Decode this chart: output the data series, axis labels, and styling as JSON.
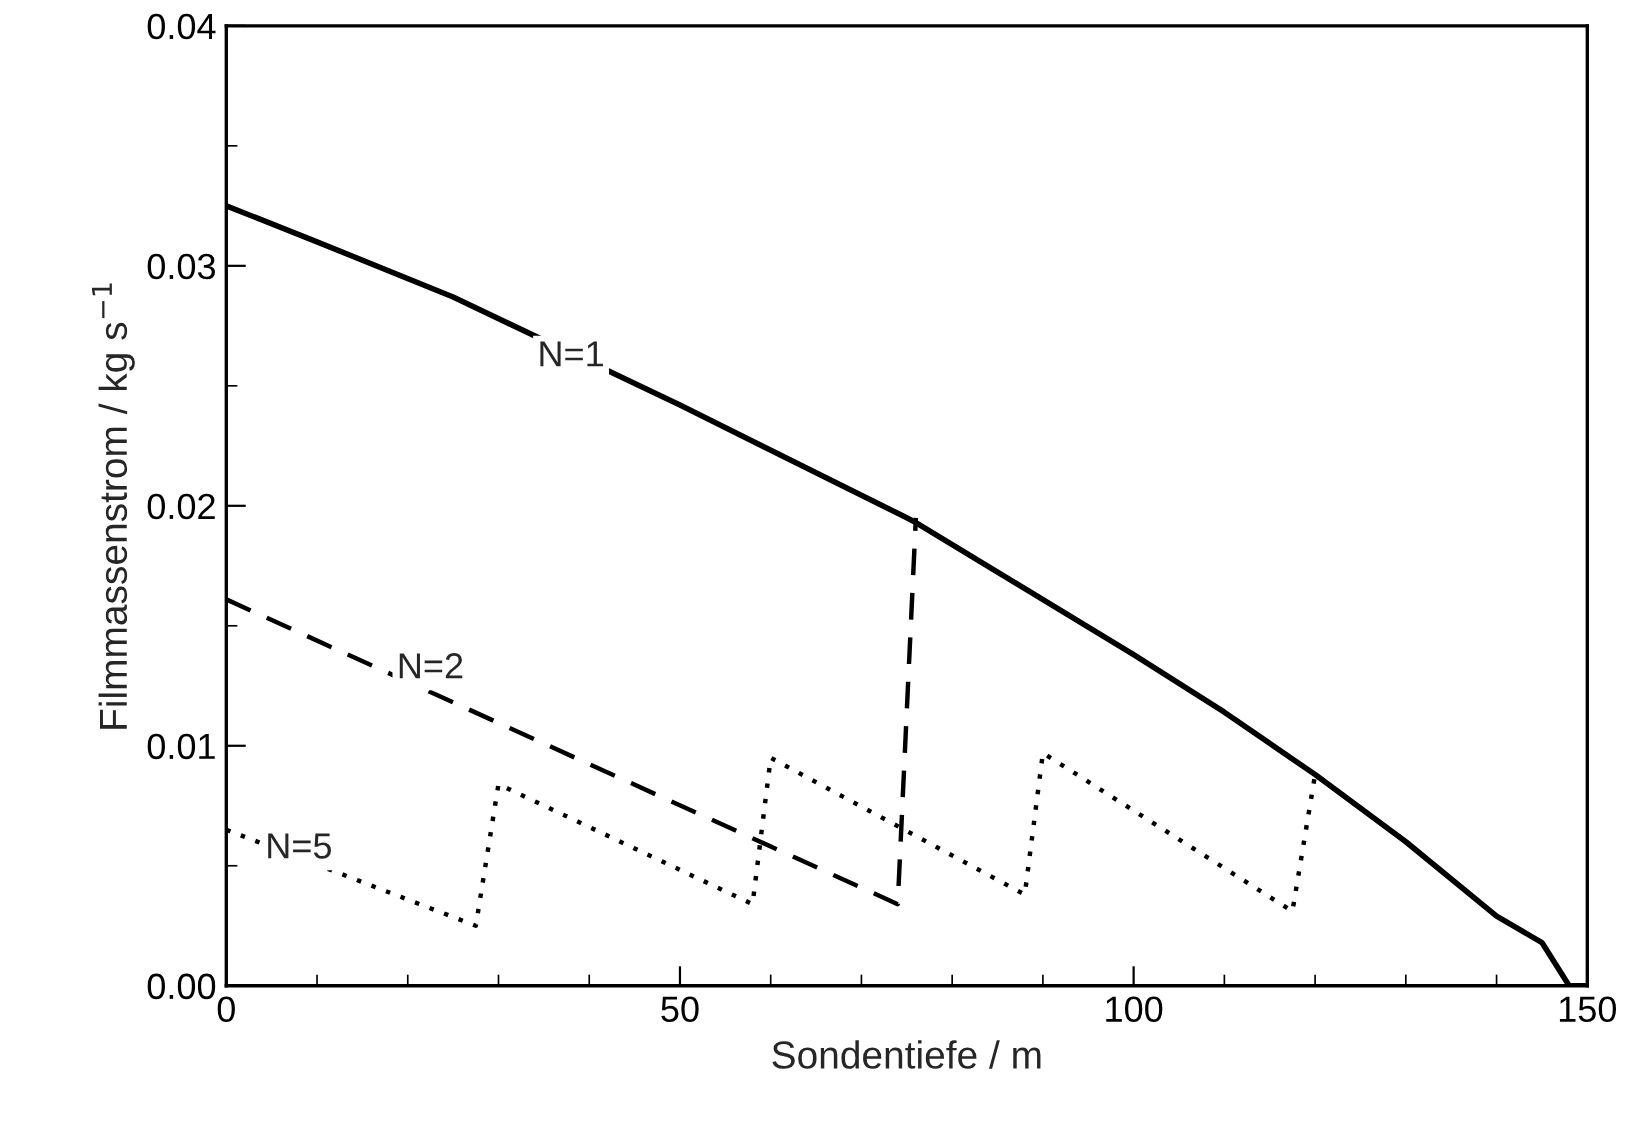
{
  "chart_data": {
    "type": "line",
    "xlabel": "Sondentiefe / m",
    "ylabel": "Filmmassenstrom / kg s$^{−1}$",
    "xlim": [
      0,
      150
    ],
    "xticks": [
      0,
      50,
      100,
      150
    ],
    "ylim": [
      0,
      0.04
    ],
    "yticks": [
      {
        "value": 0,
        "label": "0.00"
      },
      {
        "value": 0.01,
        "label": "0.01"
      },
      {
        "value": 0.02,
        "label": "0.02"
      },
      {
        "value": 0.03,
        "label": "0.03"
      },
      {
        "value": 0.04,
        "label": "0.04"
      }
    ],
    "grid": false,
    "legend": false,
    "marker": "none",
    "series": [
      {
        "color": "#000000",
        "line_style": "solid",
        "x": [
          0,
          10,
          25,
          50,
          75,
          76,
          100,
          110,
          120,
          130,
          140,
          145,
          148,
          150
        ],
        "values": [
          0.0325,
          0.031,
          0.0287,
          0.0242,
          0.0195,
          0.0193,
          0.0138,
          0.0114,
          0.0088,
          0.006,
          0.0029,
          0.0018,
          0.0,
          0.0
        ]
      },
      {
        "color": "#000000",
        "line_style": "dashed",
        "x": [
          0,
          74,
          76
        ],
        "values": [
          0.0161,
          0.0034,
          0.0195
        ]
      },
      {
        "color": "#000000",
        "line_style": "dotted",
        "x": [
          0,
          27.5,
          30,
          58,
          60,
          88,
          90,
          117.5,
          120
        ],
        "values": [
          0.0065,
          0.0025,
          0.0084,
          0.0034,
          0.0095,
          0.0038,
          0.0097,
          0.0031,
          0.0088
        ]
      }
    ],
    "annotations": [
      {
        "text": "N=1",
        "x": 38,
        "y": 0.0262
      },
      {
        "text": "N=2",
        "x": 22.5,
        "y": 0.0132
      },
      {
        "text": "N=5",
        "x": 8,
        "y": 0.0057
      }
    ]
  }
}
